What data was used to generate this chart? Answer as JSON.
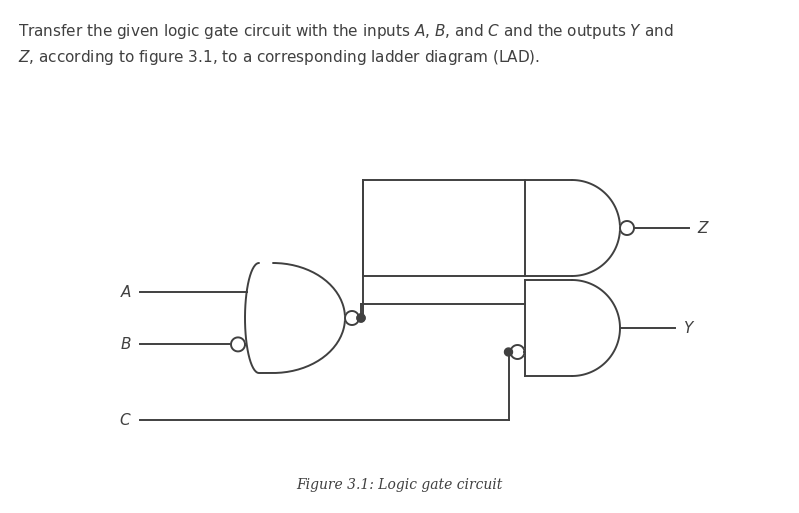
{
  "bg_color": "#ffffff",
  "line_color": "#404040",
  "text_color": "#404040",
  "label_color_zy": "#404040",
  "fig_width": 7.99,
  "fig_height": 5.13,
  "caption": "Figure 3.1: Logic gate circuit"
}
